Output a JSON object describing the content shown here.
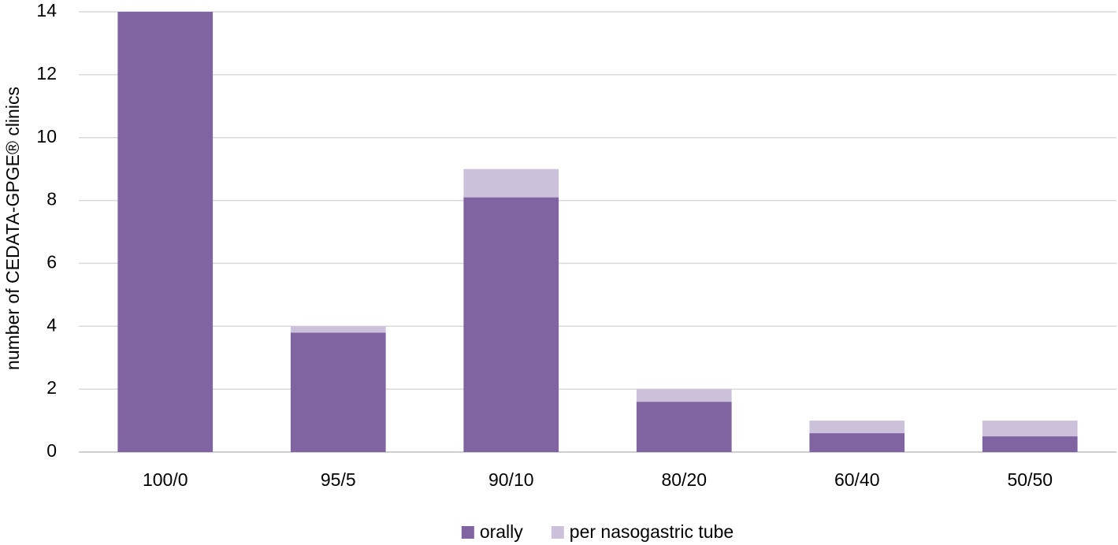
{
  "chart_data": {
    "type": "stacked-bar",
    "y_label": "number of CEDATA-GPGE® clinics",
    "categories": [
      "100/0",
      "95/5",
      "90/10",
      "80/20",
      "60/40",
      "50/50"
    ],
    "series": [
      {
        "name": "orally",
        "color": "#8064a2",
        "values": [
          14,
          3.8,
          8.1,
          1.6,
          0.6,
          0.5
        ]
      },
      {
        "name": "per nasogastric tube",
        "color": "#ccc1da",
        "values": [
          0,
          0.2,
          0.9,
          0.4,
          0.4,
          0.5
        ]
      }
    ],
    "ylim": [
      0,
      14
    ],
    "yticks": [
      0,
      2,
      4,
      6,
      8,
      10,
      12,
      14
    ],
    "grid": true,
    "legend": "bottom"
  }
}
